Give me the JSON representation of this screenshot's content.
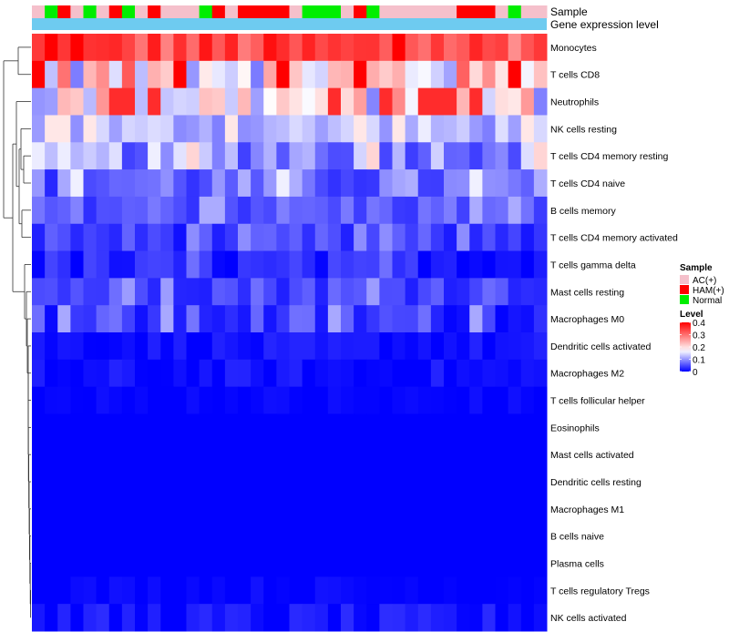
{
  "chart_data": {
    "type": "heatmap",
    "title": "",
    "annotation_tracks": [
      "Sample",
      "Gene expression level"
    ],
    "rows": [
      "Monocytes",
      "T cells CD8",
      "Neutrophils",
      "NK cells resting",
      "T cells CD4 memory resting",
      "T cells CD4 naive",
      "B cells memory",
      "T cells CD4 memory activated",
      "T cells gamma delta",
      "Mast cells resting",
      "Macrophages M0",
      "Dendritic cells activated",
      "Macrophages M2",
      "T cells follicular helper",
      "Eosinophils",
      "Mast cells activated",
      "Dendritic cells resting",
      "Macrophages M1",
      "B cells naive",
      "Plasma cells",
      "T cells regulatory  Tregs",
      "NK cells activated"
    ],
    "column_samples": [
      "A",
      "N",
      "H",
      "A",
      "N",
      "A",
      "H",
      "N",
      "A",
      "H",
      "A",
      "A",
      "A",
      "N",
      "H",
      "A",
      "H",
      "H",
      "H",
      "H",
      "A",
      "N",
      "N",
      "N",
      "A",
      "H",
      "N",
      "A",
      "A",
      "A",
      "A",
      "A",
      "A",
      "H",
      "H",
      "H",
      "A",
      "N",
      "A",
      "A"
    ],
    "sample_legend": {
      "title": "Sample",
      "entries": [
        {
          "key": "A",
          "label": "AC(+)",
          "color": "#f5c0cb"
        },
        {
          "key": "H",
          "label": "HAM(+)",
          "color": "#ff0000"
        },
        {
          "key": "N",
          "label": "Normal",
          "color": "#00ee00"
        }
      ]
    },
    "expression_bar_color": "#6ecbf0",
    "level_legend": {
      "title": "Level",
      "ticks": [
        "0.4",
        "0.3",
        "0.2",
        "0.1",
        "0"
      ],
      "range": [
        0,
        0.4
      ],
      "colors": {
        "low": "#0000ff",
        "mid": "#ffffff",
        "high": "#ff0000",
        "mid_value": 0.17
      }
    },
    "row_base_values": [
      0.33,
      0.2,
      0.18,
      0.12,
      0.1,
      0.07,
      0.06,
      0.04,
      0.02,
      0.05,
      0.04,
      0.01,
      0.005,
      0.002,
      0.0,
      0.0,
      0.0,
      0.0,
      0.0,
      0.0,
      0.003,
      0.01
    ],
    "row_variation": [
      0.06,
      0.12,
      0.1,
      0.04,
      0.06,
      0.05,
      0.03,
      0.03,
      0.03,
      0.03,
      0.04,
      0.015,
      0.02,
      0.01,
      0.0,
      0.0,
      0.0,
      0.0,
      0.0,
      0.0,
      0.01,
      0.02
    ]
  }
}
